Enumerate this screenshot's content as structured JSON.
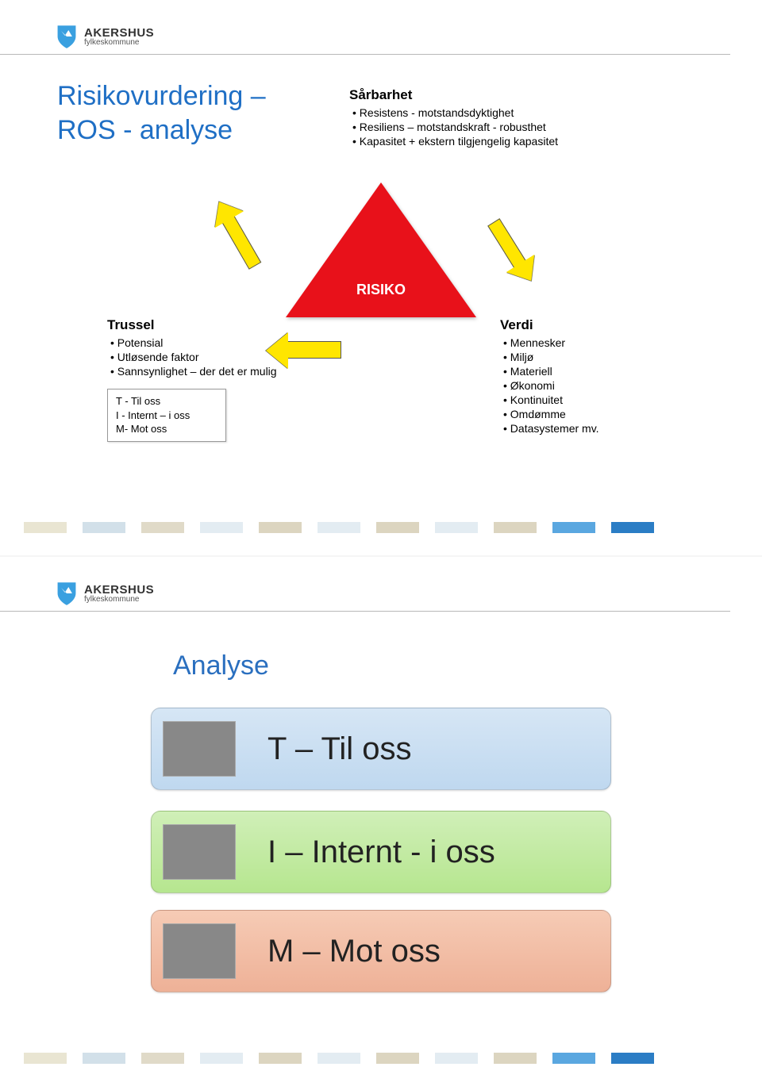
{
  "logo": {
    "main": "AKERSHUS",
    "sub": "fylkeskommune"
  },
  "slide1": {
    "title_line1": "Risikovurdering –",
    "title_line2": "ROS - analyse",
    "title_color": "#1f6fc5",
    "sarbarhet": {
      "heading": "Sårbarhet",
      "items": [
        "Resistens - motstandsdyktighet",
        "Resiliens – motstandskraft - robusthet",
        "Kapasitet + ekstern tilgjengelig kapasitet"
      ]
    },
    "triangle": {
      "label": "RISIKO",
      "fill": "#e8111a",
      "text_color": "#ffffff"
    },
    "arrows": {
      "fill": "#ffe600",
      "stroke": "#555555"
    },
    "trussel": {
      "heading": "Trussel",
      "items": [
        "Potensial",
        "Utløsende faktor",
        "Sannsynlighet – der det er mulig"
      ],
      "box": {
        "line1": "T - Til oss",
        "line2": "I  -  Internt – i oss",
        "line3": "M- Mot oss"
      }
    },
    "verdi": {
      "heading": "Verdi",
      "items": [
        "Mennesker",
        "Miljø",
        "Materiell",
        "Økonomi",
        "Kontinuitet",
        "Omdømme",
        "Datasystemer mv."
      ]
    },
    "footer_colors": [
      "#e9e5d2",
      "#d2e0e9",
      "#e0dac8",
      "#e3ecf2",
      "#dcd5c0",
      "#e3ecf2",
      "#dcd5c0",
      "#e3ecf2",
      "#dcd5c0",
      "#5aa7e0",
      "#2b7dc5"
    ]
  },
  "slide2": {
    "title": "Analyse",
    "title_color": "#2a6fbf",
    "cards": {
      "T": {
        "label": "T  – Til oss",
        "bg_top": "#d6e6f5",
        "bg_bot": "#bfd8ef",
        "thumb": "traffic"
      },
      "I": {
        "label": "I   – Internt - i oss",
        "bg_top": "#d0efb8",
        "bg_bot": "#b6e68f",
        "thumb": "fire"
      },
      "M": {
        "label": "M – Mot oss",
        "bg_top": "#f6cbb5",
        "bg_bot": "#eeb197",
        "thumb": "knife"
      }
    },
    "footer_colors": [
      "#e9e5d2",
      "#d2e0e9",
      "#e0dac8",
      "#e3ecf2",
      "#dcd5c0",
      "#e3ecf2",
      "#dcd5c0",
      "#e3ecf2",
      "#dcd5c0",
      "#5aa7e0",
      "#2b7dc5"
    ]
  }
}
